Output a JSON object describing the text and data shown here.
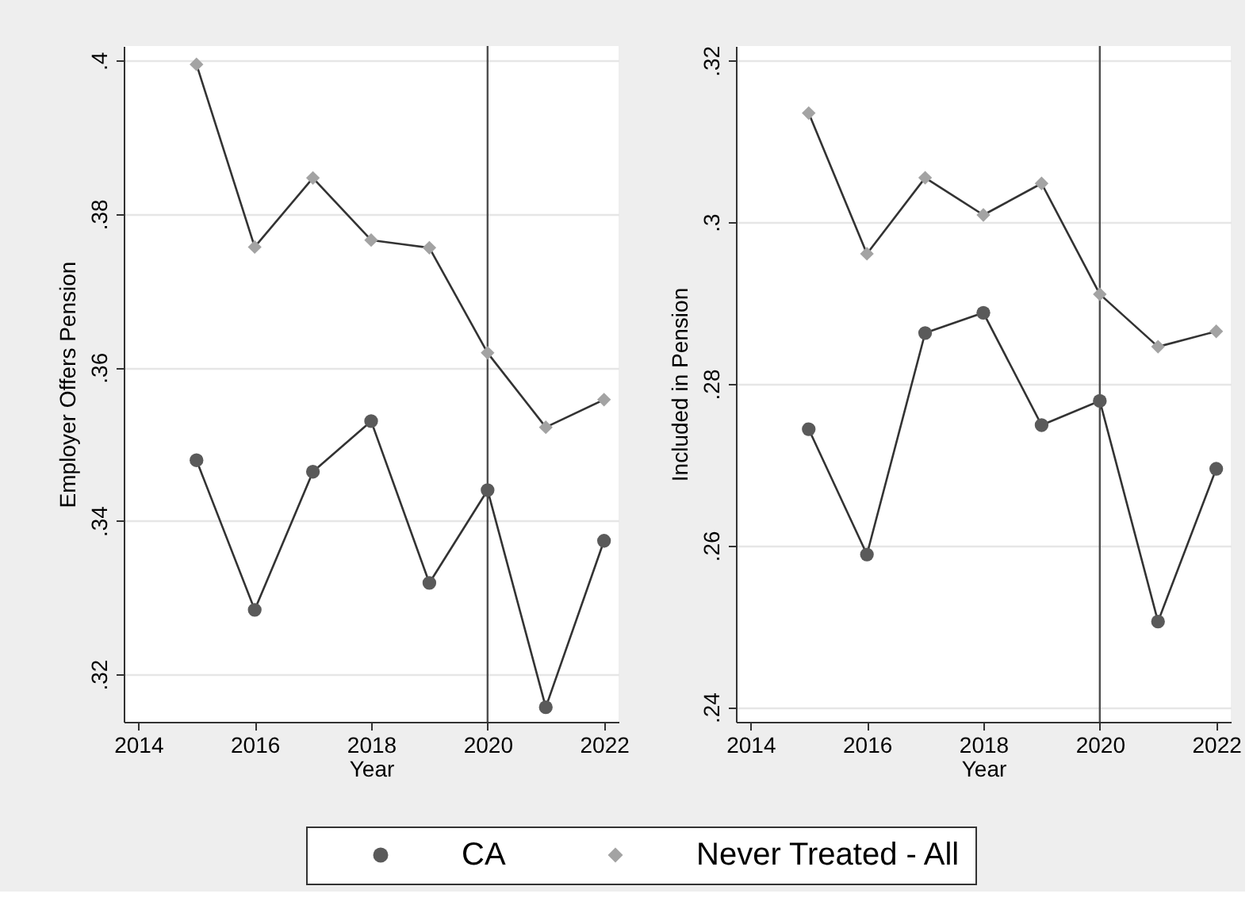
{
  "chart_data": [
    {
      "type": "line",
      "xlabel": "Year",
      "ylabel": "Employer Offers Pension",
      "x": [
        2015,
        2016,
        2017,
        2018,
        2019,
        2020,
        2021,
        2022
      ],
      "series": [
        {
          "name": "CA",
          "color": "#5a5a5a",
          "marker": "circle",
          "values": [
            0.3479,
            0.3284,
            0.3464,
            0.353,
            0.3319,
            0.344,
            0.3157,
            0.3374
          ]
        },
        {
          "name": "Never Treated - All",
          "color": "#a3a3a3",
          "marker": "diamond",
          "values": [
            0.3995,
            0.3757,
            0.3847,
            0.3766,
            0.3756,
            0.3619,
            0.3522,
            0.3558
          ]
        }
      ],
      "xlim": [
        2013.75,
        2022.25
      ],
      "xticks": [
        2014,
        2016,
        2018,
        2020,
        2022
      ],
      "ylim": [
        0.3138,
        0.4019
      ],
      "yticks": [
        {
          "value": 0.32,
          "label": ".32"
        },
        {
          "value": 0.34,
          "label": ".34"
        },
        {
          "value": 0.36,
          "label": ".36"
        },
        {
          "value": 0.38,
          "label": ".38"
        },
        {
          "value": 0.4,
          "label": ".4"
        }
      ],
      "ref_lines": [
        {
          "axis": "x",
          "value": 2020,
          "color": "#4d4d4d"
        }
      ],
      "grid": "y",
      "legend": "bottom"
    },
    {
      "type": "line",
      "xlabel": "Year",
      "ylabel": "Included in Pension",
      "x": [
        2015,
        2016,
        2017,
        2018,
        2019,
        2020,
        2021,
        2022
      ],
      "series": [
        {
          "name": "CA",
          "color": "#5a5a5a",
          "marker": "circle",
          "values": [
            0.2744,
            0.2589,
            0.2863,
            0.2888,
            0.2749,
            0.2779,
            0.2506,
            0.2695
          ]
        },
        {
          "name": "Never Treated - All",
          "color": "#a3a3a3",
          "marker": "diamond",
          "values": [
            0.3135,
            0.2961,
            0.3055,
            0.3009,
            0.3048,
            0.2911,
            0.2846,
            0.2865
          ]
        }
      ],
      "xlim": [
        2013.75,
        2022.25
      ],
      "xticks": [
        2014,
        2016,
        2018,
        2020,
        2022
      ],
      "ylim": [
        0.2382,
        0.3218
      ],
      "yticks": [
        {
          "value": 0.24,
          "label": ".24"
        },
        {
          "value": 0.26,
          "label": ".26"
        },
        {
          "value": 0.28,
          "label": ".28"
        },
        {
          "value": 0.3,
          "label": ".3"
        },
        {
          "value": 0.32,
          "label": ".32"
        }
      ],
      "ref_lines": [
        {
          "axis": "x",
          "value": 2020,
          "color": "#4d4d4d"
        }
      ],
      "grid": "y",
      "legend": "bottom"
    }
  ]
}
